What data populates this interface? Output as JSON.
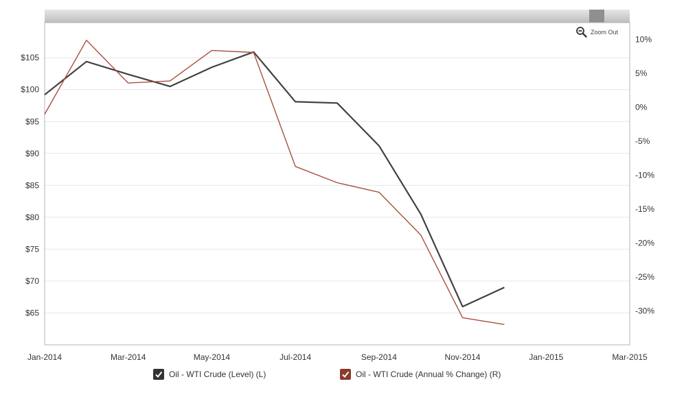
{
  "zoom_label": "Zoom Out",
  "chart_data": {
    "type": "line",
    "x": [
      "2014-01",
      "2014-02",
      "2014-03",
      "2014-04",
      "2014-05",
      "2014-06",
      "2014-07",
      "2014-08",
      "2014-09",
      "2014-10",
      "2014-11",
      "2014-12"
    ],
    "x_range": [
      "2014-01",
      "2015-03"
    ],
    "x_tick_labels": [
      "Jan-2014",
      "Mar-2014",
      "May-2014",
      "Jul-2014",
      "Sep-2014",
      "Nov-2014",
      "Jan-2015",
      "Mar-2015"
    ],
    "series": [
      {
        "name": "Oil - WTI Crude (Level) (L)",
        "axis": "left",
        "color": "#404040",
        "values": [
          99.2,
          104.4,
          102.4,
          100.5,
          103.5,
          105.9,
          98.1,
          97.9,
          91.2,
          80.5,
          66.0,
          69.0
        ]
      },
      {
        "name": "Oil - WTI Crude (Annual % Change) (R)",
        "axis": "right",
        "color": "#a84f3c",
        "values": [
          -1.0,
          9.9,
          3.6,
          3.9,
          8.4,
          8.1,
          -8.7,
          -11.1,
          -12.5,
          -18.8,
          -31.0,
          -32.0
        ]
      }
    ],
    "y_left": {
      "ylim": [
        60,
        110.5
      ],
      "ticks": [
        65,
        70,
        75,
        80,
        85,
        90,
        95,
        100,
        105
      ],
      "tick_labels": [
        "$65",
        "$70",
        "$75",
        "$80",
        "$85",
        "$90",
        "$95",
        "$100",
        "$105"
      ]
    },
    "y_right": {
      "ylim": [
        -35,
        12.5
      ],
      "ticks": [
        -30,
        -25,
        -20,
        -15,
        -10,
        -5,
        0,
        5,
        10
      ],
      "tick_labels": [
        "-30%",
        "-25%",
        "-20%",
        "-15%",
        "-10%",
        "-5%",
        "0%",
        "5%",
        "10%"
      ]
    },
    "grid": true,
    "legend_position": "bottom"
  }
}
